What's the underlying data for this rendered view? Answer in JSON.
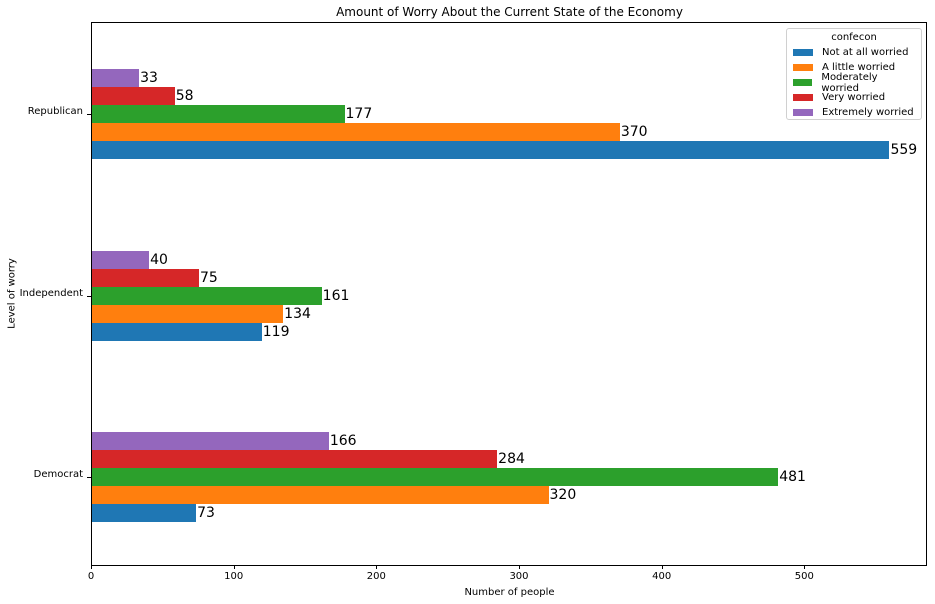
{
  "chart_data": {
    "type": "bar",
    "orientation": "horizontal",
    "title": "Amount of Worry About the Current State of the Economy",
    "xlabel": "Number of people",
    "ylabel": "Level of worry",
    "xlim": [
      0,
      586
    ],
    "xticks": [
      0,
      100,
      200,
      300,
      400,
      500
    ],
    "categories": [
      "Democrat",
      "Independent",
      "Republican"
    ],
    "legend_title": "confecon",
    "legend_position": "upper right",
    "grid": false,
    "series": [
      {
        "name": "Not at all worried",
        "color": "#1f77b4",
        "values": [
          73,
          119,
          559
        ]
      },
      {
        "name": "A little worried",
        "color": "#ff7f0e",
        "values": [
          320,
          134,
          370
        ]
      },
      {
        "name": "Moderately worried",
        "color": "#2ca02c",
        "values": [
          481,
          161,
          177
        ]
      },
      {
        "name": "Very worried",
        "color": "#d62728",
        "values": [
          284,
          75,
          58
        ]
      },
      {
        "name": "Extremely worried",
        "color": "#9467bd",
        "values": [
          166,
          40,
          33
        ]
      }
    ]
  }
}
